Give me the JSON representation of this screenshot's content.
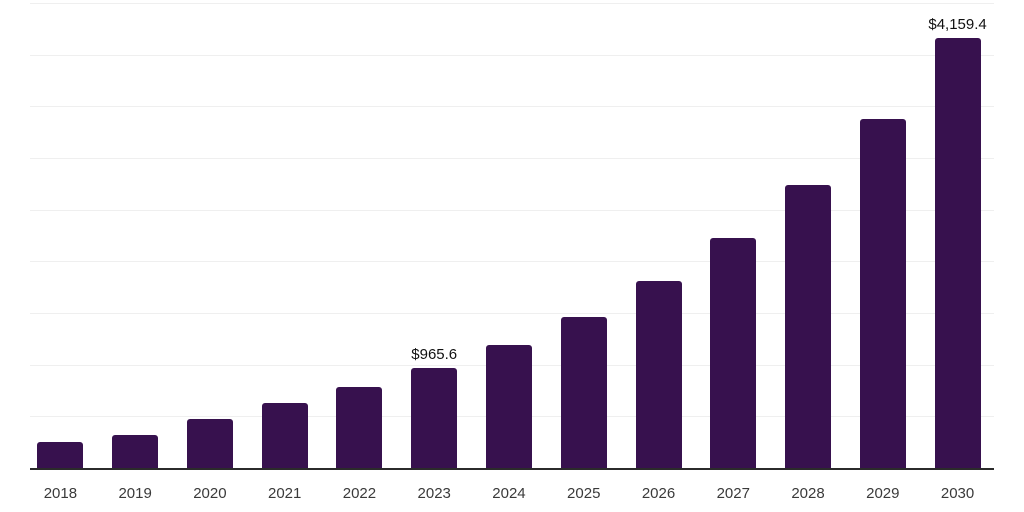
{
  "chart_data": {
    "type": "bar",
    "title": "",
    "xlabel": "",
    "ylabel": "",
    "categories": [
      "2018",
      "2019",
      "2020",
      "2021",
      "2022",
      "2023",
      "2024",
      "2025",
      "2026",
      "2027",
      "2028",
      "2029",
      "2030"
    ],
    "values": [
      250,
      315,
      470,
      630,
      785,
      965.6,
      1190,
      1466,
      1806,
      2226,
      2743,
      3380,
      4159.4
    ],
    "data_labels": {
      "2023": "$965.6",
      "2030": "$4,159.4"
    },
    "ylim": [
      0,
      4500
    ],
    "gridline_step": 500,
    "grid": "horizontal-only",
    "y_axis_tick_labels": "none",
    "legend": "none",
    "colors": {
      "bar": "#37114E",
      "axis_line": "#2b2b2b",
      "gridline": "#efefef",
      "tick_label": "#3a3a3a",
      "data_label": "#111111",
      "background": "#ffffff"
    }
  }
}
